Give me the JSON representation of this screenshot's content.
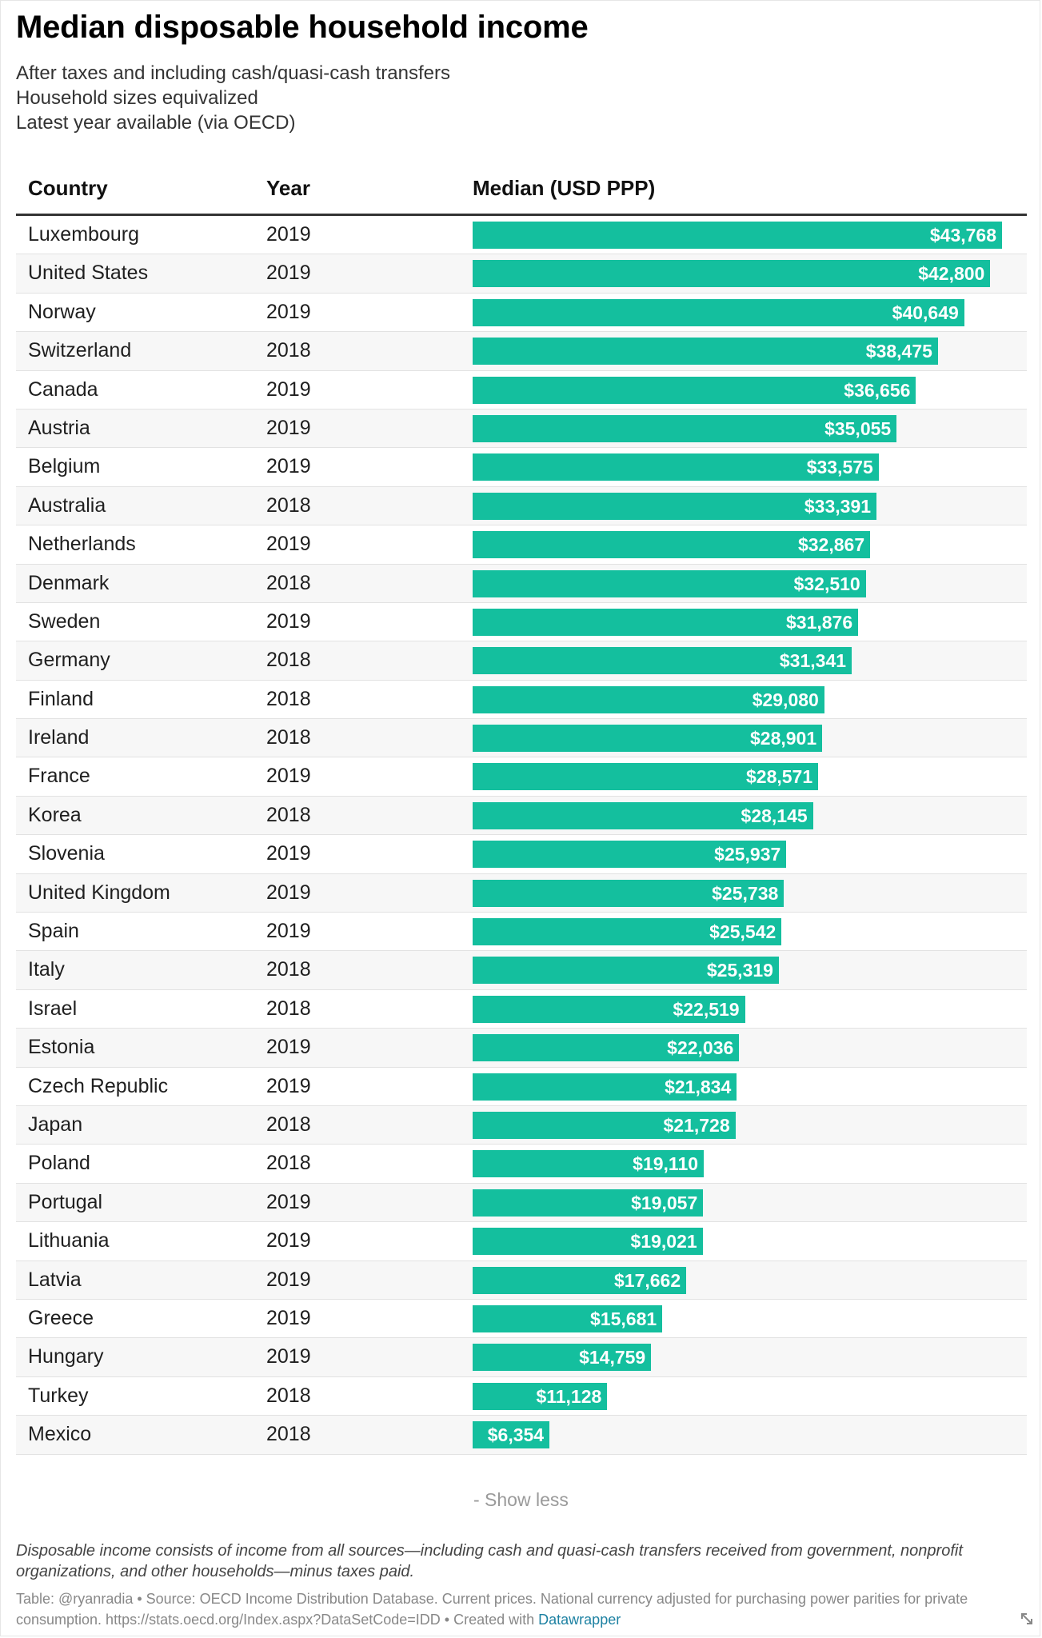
{
  "title": "Median disposable household income",
  "subtitle": [
    "After taxes and including cash/quasi-cash transfers",
    "Household sizes equivalized",
    "Latest year available (via OECD)"
  ],
  "columns": {
    "country": "Country",
    "year": "Year",
    "median": "Median (USD PPP)"
  },
  "accent_color": "#14bf9e",
  "rows": [
    {
      "country": "Luxembourg",
      "year": "2019",
      "label": "$43,768"
    },
    {
      "country": "United States",
      "year": "2019",
      "label": "$42,800"
    },
    {
      "country": "Norway",
      "year": "2019",
      "label": "$40,649"
    },
    {
      "country": "Switzerland",
      "year": "2018",
      "label": "$38,475"
    },
    {
      "country": "Canada",
      "year": "2019",
      "label": "$36,656"
    },
    {
      "country": "Austria",
      "year": "2019",
      "label": "$35,055"
    },
    {
      "country": "Belgium",
      "year": "2019",
      "label": "$33,575"
    },
    {
      "country": "Australia",
      "year": "2018",
      "label": "$33,391"
    },
    {
      "country": "Netherlands",
      "year": "2019",
      "label": "$32,867"
    },
    {
      "country": "Denmark",
      "year": "2018",
      "label": "$32,510"
    },
    {
      "country": "Sweden",
      "year": "2019",
      "label": "$31,876"
    },
    {
      "country": "Germany",
      "year": "2018",
      "label": "$31,341"
    },
    {
      "country": "Finland",
      "year": "2018",
      "label": "$29,080"
    },
    {
      "country": "Ireland",
      "year": "2018",
      "label": "$28,901"
    },
    {
      "country": "France",
      "year": "2019",
      "label": "$28,571"
    },
    {
      "country": "Korea",
      "year": "2018",
      "label": "$28,145"
    },
    {
      "country": "Slovenia",
      "year": "2019",
      "label": "$25,937"
    },
    {
      "country": "United Kingdom",
      "year": "2019",
      "label": "$25,738"
    },
    {
      "country": "Spain",
      "year": "2019",
      "label": "$25,542"
    },
    {
      "country": "Italy",
      "year": "2018",
      "label": "$25,319"
    },
    {
      "country": "Israel",
      "year": "2018",
      "label": "$22,519"
    },
    {
      "country": "Estonia",
      "year": "2019",
      "label": "$22,036"
    },
    {
      "country": "Czech Republic",
      "year": "2019",
      "label": "$21,834"
    },
    {
      "country": "Japan",
      "year": "2018",
      "label": "$21,728"
    },
    {
      "country": "Poland",
      "year": "2018",
      "label": "$19,110"
    },
    {
      "country": "Portugal",
      "year": "2019",
      "label": "$19,057"
    },
    {
      "country": "Lithuania",
      "year": "2019",
      "label": "$19,021"
    },
    {
      "country": "Latvia",
      "year": "2019",
      "label": "$17,662"
    },
    {
      "country": "Greece",
      "year": "2019",
      "label": "$15,681"
    },
    {
      "country": "Hungary",
      "year": "2019",
      "label": "$14,759"
    },
    {
      "country": "Turkey",
      "year": "2018",
      "label": "$11,128"
    },
    {
      "country": "Mexico",
      "year": "2018",
      "label": "$6,354"
    }
  ],
  "show_less_label": "- Show less",
  "note": "Disposable income consists of income from all sources—including cash and quasi-cash transfers received from government, nonprofit organizations, and other households—minus taxes paid.",
  "source_text": "Table: @ryanradia • Source: OECD Income Distribution Database. Current prices. National currency adjusted for purchasing power parities for private consumption. https://stats.oecd.org/Index.aspx?DataSetCode=IDD • Created with ",
  "source_link": "Datawrapper",
  "resize_icon": "resize-icon",
  "chart_data": {
    "type": "bar",
    "title": "Median disposable household income",
    "xlabel": "Median (USD PPP)",
    "ylabel": "Country",
    "xlim": [
      0,
      43768
    ],
    "categories": [
      "Luxembourg",
      "United States",
      "Norway",
      "Switzerland",
      "Canada",
      "Austria",
      "Belgium",
      "Australia",
      "Netherlands",
      "Denmark",
      "Sweden",
      "Germany",
      "Finland",
      "Ireland",
      "France",
      "Korea",
      "Slovenia",
      "United Kingdom",
      "Spain",
      "Italy",
      "Israel",
      "Estonia",
      "Czech Republic",
      "Japan",
      "Poland",
      "Portugal",
      "Lithuania",
      "Latvia",
      "Greece",
      "Hungary",
      "Turkey",
      "Mexico"
    ],
    "values": [
      43768,
      42800,
      40649,
      38475,
      36656,
      35055,
      33575,
      33391,
      32867,
      32510,
      31876,
      31341,
      29080,
      28901,
      28571,
      28145,
      25937,
      25738,
      25542,
      25319,
      22519,
      22036,
      21834,
      21728,
      19110,
      19057,
      19021,
      17662,
      15681,
      14759,
      11128,
      6354
    ]
  }
}
